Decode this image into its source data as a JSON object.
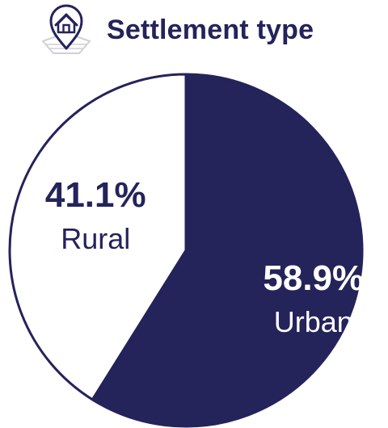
{
  "colors": {
    "primary": "#24235a",
    "background": "#ffffff",
    "icon_accent": "#cfcfd6"
  },
  "header": {
    "icon": "house-location-pin-icon",
    "title": "Settlement type"
  },
  "chart_data": {
    "type": "pie",
    "title": "Settlement type",
    "slices": [
      {
        "label": "Urban",
        "value": 58.9,
        "display": "58.9%",
        "color": "#24235a",
        "text_color": "#ffffff"
      },
      {
        "label": "Rural",
        "value": 41.1,
        "display": "41.1%",
        "color": "#ffffff",
        "text_color": "#24235a"
      }
    ]
  }
}
